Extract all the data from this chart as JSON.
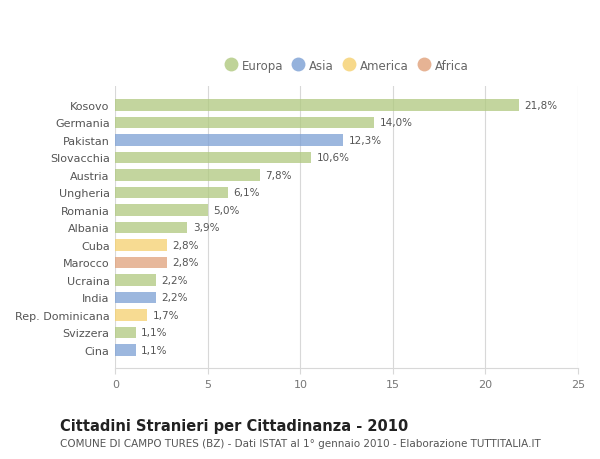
{
  "title": "Cittadini Stranieri per Cittadinanza - 2010",
  "subtitle": "COMUNE DI CAMPO TURES (BZ) - Dati ISTAT al 1° gennaio 2010 - Elaborazione TUTTITALIA.IT",
  "categories": [
    "Kosovo",
    "Germania",
    "Pakistan",
    "Slovacchia",
    "Austria",
    "Ungheria",
    "Romania",
    "Albania",
    "Cuba",
    "Marocco",
    "Ucraina",
    "India",
    "Rep. Dominicana",
    "Svizzera",
    "Cina"
  ],
  "values": [
    21.8,
    14.0,
    12.3,
    10.6,
    7.8,
    6.1,
    5.0,
    3.9,
    2.8,
    2.8,
    2.2,
    2.2,
    1.7,
    1.1,
    1.1
  ],
  "labels": [
    "21,8%",
    "14,0%",
    "12,3%",
    "10,6%",
    "7,8%",
    "6,1%",
    "5,0%",
    "3,9%",
    "2,8%",
    "2,8%",
    "2,2%",
    "2,2%",
    "1,7%",
    "1,1%",
    "1,1%"
  ],
  "colors": [
    "#afc87e",
    "#afc87e",
    "#7b9fd4",
    "#afc87e",
    "#afc87e",
    "#afc87e",
    "#afc87e",
    "#afc87e",
    "#f5d06e",
    "#e0a07a",
    "#afc87e",
    "#7b9fd4",
    "#f5d06e",
    "#afc87e",
    "#7b9fd4"
  ],
  "legend": [
    {
      "label": "Europa",
      "color": "#afc87e"
    },
    {
      "label": "Asia",
      "color": "#7b9fd4"
    },
    {
      "label": "America",
      "color": "#f5d06e"
    },
    {
      "label": "Africa",
      "color": "#e0a07a"
    }
  ],
  "xlim": [
    0,
    25
  ],
  "xticks": [
    0,
    5,
    10,
    15,
    20,
    25
  ],
  "background_color": "#ffffff",
  "grid_color": "#d8d8d8",
  "bar_height": 0.65,
  "title_fontsize": 10.5,
  "subtitle_fontsize": 7.5,
  "label_fontsize": 7.5,
  "tick_fontsize": 8,
  "legend_fontsize": 8.5
}
